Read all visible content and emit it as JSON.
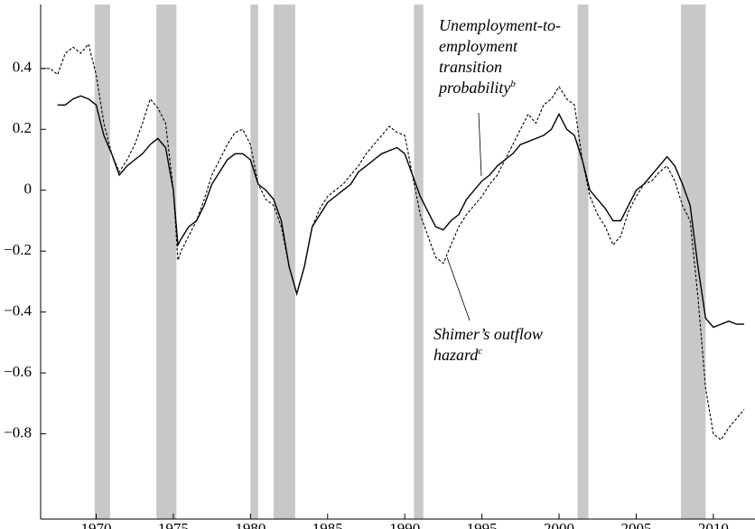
{
  "chart_data": {
    "type": "line",
    "xlim": [
      1966.4,
      2012.7
    ],
    "ylim": [
      -1.08,
      0.61
    ],
    "xticks": [
      1970,
      1975,
      1980,
      1985,
      1990,
      1995,
      2000,
      2005,
      2010
    ],
    "yticks": [
      {
        "value": -0.8,
        "label": "−0.8"
      },
      {
        "value": -0.6,
        "label": "−0.6"
      },
      {
        "value": -0.4,
        "label": "−0.4"
      },
      {
        "value": -0.2,
        "label": "−0.2"
      },
      0,
      0.2,
      0.4
    ],
    "recessions": [
      [
        1969.9,
        1970.9
      ],
      [
        1973.9,
        1975.2
      ],
      [
        1980.0,
        1980.5
      ],
      [
        1981.5,
        1982.9
      ],
      [
        1990.6,
        1991.2
      ],
      [
        2001.2,
        2001.9
      ],
      [
        2007.9,
        2009.5
      ]
    ],
    "recession_color": "#c8c8c8",
    "series": [
      {
        "name": "Unemployment-to-employment transition probability",
        "label_lines": [
          "Unemployment-to-",
          "employment",
          "transition",
          "probability"
        ],
        "superscript": "b",
        "color": "#000000",
        "dash": false,
        "x": [
          1967.5,
          1968,
          1968.5,
          1969,
          1969.5,
          1970,
          1970.5,
          1971,
          1971.5,
          1972,
          1972.5,
          1973,
          1973.5,
          1974,
          1974.5,
          1975,
          1975.3,
          1975.5,
          1976,
          1976.5,
          1977,
          1977.5,
          1978,
          1978.5,
          1979,
          1979.5,
          1980,
          1980.5,
          1981,
          1981.5,
          1982,
          1982.5,
          1983,
          1983.5,
          1984,
          1984.5,
          1985,
          1985.5,
          1986,
          1986.5,
          1987,
          1987.5,
          1988,
          1988.5,
          1989,
          1989.5,
          1990,
          1990.5,
          1991,
          1991.5,
          1992,
          1992.5,
          1993,
          1993.5,
          1994,
          1994.5,
          1995,
          1995.5,
          1996,
          1996.5,
          1997,
          1997.5,
          1998,
          1998.5,
          1999,
          1999.5,
          2000,
          2000.5,
          2001,
          2001.5,
          2002,
          2002.5,
          2003,
          2003.5,
          2004,
          2004.5,
          2005,
          2005.5,
          2006,
          2006.5,
          2007,
          2007.5,
          2008,
          2008.5,
          2009,
          2009.5,
          2010,
          2010.5,
          2011,
          2011.5,
          2012
        ],
        "values": [
          0.28,
          0.28,
          0.3,
          0.31,
          0.3,
          0.28,
          0.18,
          0.12,
          0.05,
          0.08,
          0.1,
          0.12,
          0.15,
          0.17,
          0.14,
          0.0,
          -0.18,
          -0.16,
          -0.12,
          -0.1,
          -0.05,
          0.02,
          0.06,
          0.1,
          0.12,
          0.12,
          0.1,
          0.02,
          0.0,
          -0.03,
          -0.1,
          -0.25,
          -0.34,
          -0.25,
          -0.12,
          -0.08,
          -0.04,
          -0.02,
          0.0,
          0.02,
          0.06,
          0.08,
          0.1,
          0.12,
          0.13,
          0.14,
          0.12,
          0.05,
          -0.02,
          -0.07,
          -0.12,
          -0.13,
          -0.1,
          -0.08,
          -0.03,
          0.0,
          0.03,
          0.05,
          0.08,
          0.1,
          0.12,
          0.15,
          0.16,
          0.17,
          0.18,
          0.2,
          0.25,
          0.2,
          0.18,
          0.1,
          0.0,
          -0.03,
          -0.06,
          -0.1,
          -0.1,
          -0.05,
          0.0,
          0.02,
          0.05,
          0.08,
          0.11,
          0.08,
          0.02,
          -0.05,
          -0.25,
          -0.42,
          -0.45,
          -0.44,
          -0.43,
          -0.44,
          -0.44
        ]
      },
      {
        "name": "Shimer’s outflow hazard",
        "label_lines": [
          "Shimer’s outflow",
          "hazard"
        ],
        "superscript": "c",
        "color": "#000000",
        "dash": true,
        "x": [
          1966.5,
          1967,
          1967.5,
          1968,
          1968.5,
          1969,
          1969.5,
          1970,
          1970.5,
          1971,
          1971.5,
          1972,
          1972.5,
          1973,
          1973.5,
          1974,
          1974.5,
          1975,
          1975.3,
          1975.5,
          1976,
          1976.5,
          1977,
          1977.5,
          1978,
          1978.5,
          1979,
          1979.5,
          1980,
          1980.5,
          1981,
          1981.5,
          1982,
          1982.5,
          1983,
          1983.5,
          1984,
          1984.5,
          1985,
          1985.5,
          1986,
          1986.5,
          1987,
          1987.5,
          1988,
          1988.5,
          1989,
          1989.5,
          1990,
          1990.5,
          1991,
          1991.5,
          1992,
          1992.5,
          1993,
          1993.5,
          1994,
          1994.5,
          1995,
          1995.5,
          1996,
          1996.5,
          1997,
          1997.5,
          1998,
          1998.5,
          1999,
          1999.5,
          2000,
          2000.5,
          2001,
          2001.5,
          2002,
          2002.5,
          2003,
          2003.5,
          2004,
          2004.5,
          2005,
          2005.5,
          2006,
          2006.5,
          2007,
          2007.5,
          2008,
          2008.5,
          2009,
          2009.5,
          2010,
          2010.5,
          2011,
          2011.5,
          2012
        ],
        "values": [
          0.4,
          0.4,
          0.38,
          0.45,
          0.47,
          0.45,
          0.48,
          0.38,
          0.22,
          0.12,
          0.06,
          0.1,
          0.15,
          0.22,
          0.3,
          0.27,
          0.22,
          0.0,
          -0.23,
          -0.2,
          -0.15,
          -0.1,
          -0.03,
          0.05,
          0.1,
          0.15,
          0.19,
          0.2,
          0.15,
          0.02,
          -0.03,
          -0.05,
          -0.12,
          -0.25,
          -0.34,
          -0.25,
          -0.12,
          -0.06,
          -0.02,
          0.0,
          0.02,
          0.05,
          0.08,
          0.12,
          0.15,
          0.18,
          0.21,
          0.19,
          0.18,
          0.05,
          -0.08,
          -0.15,
          -0.22,
          -0.24,
          -0.18,
          -0.12,
          -0.08,
          -0.05,
          -0.02,
          0.02,
          0.05,
          0.1,
          0.15,
          0.2,
          0.25,
          0.22,
          0.28,
          0.3,
          0.34,
          0.3,
          0.28,
          0.1,
          -0.02,
          -0.08,
          -0.12,
          -0.18,
          -0.15,
          -0.07,
          -0.02,
          0.02,
          0.03,
          0.06,
          0.08,
          0.03,
          -0.05,
          -0.1,
          -0.35,
          -0.65,
          -0.8,
          -0.82,
          -0.78,
          -0.75,
          -0.72
        ]
      }
    ]
  }
}
